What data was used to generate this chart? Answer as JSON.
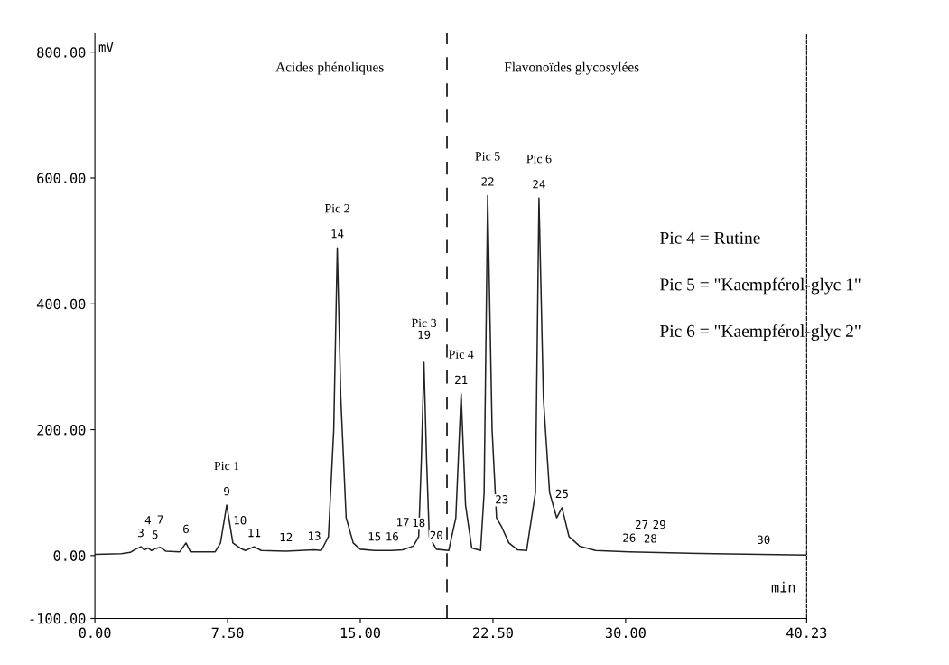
{
  "chart_data": {
    "type": "line",
    "xlabel": "min",
    "ylabel": "mV",
    "series": [
      {
        "color": "#222222",
        "x": [
          0,
          1.5,
          2.0,
          2.3,
          2.6,
          2.8,
          3.0,
          3.2,
          3.4,
          3.7,
          4.0,
          4.8,
          5.15,
          5.4,
          6.8,
          7.1,
          7.45,
          7.8,
          8.2,
          8.5,
          9.0,
          9.4,
          10.8,
          12.4,
          12.8,
          13.2,
          13.5,
          13.7,
          13.9,
          14.2,
          14.6,
          15.0,
          15.8,
          16.8,
          17.4,
          18.0,
          18.3,
          18.45,
          18.6,
          18.75,
          18.9,
          19.3,
          20.0,
          20.4,
          20.7,
          20.95,
          21.3,
          21.8,
          22.0,
          22.2,
          22.45,
          22.7,
          23.0,
          23.4,
          23.9,
          24.4,
          24.9,
          25.1,
          25.35,
          25.7,
          26.1,
          26.4,
          26.8,
          27.4,
          28.3,
          30.2,
          31.3,
          35,
          40.23
        ],
        "values": [
          2,
          3,
          5,
          10,
          14,
          9,
          12,
          8,
          11,
          13,
          7,
          6,
          20,
          6,
          6,
          20,
          80,
          20,
          12,
          8,
          14,
          8,
          7,
          9,
          8,
          30,
          200,
          489,
          250,
          60,
          20,
          10,
          8,
          8,
          9,
          15,
          30,
          150,
          307,
          150,
          30,
          10,
          8,
          60,
          257,
          80,
          12,
          8,
          100,
          572,
          200,
          60,
          45,
          20,
          9,
          8,
          100,
          568,
          250,
          100,
          60,
          76,
          30,
          15,
          8,
          6,
          5,
          3,
          1
        ]
      }
    ],
    "xlim": [
      0,
      40.23
    ],
    "ylim": [
      -100,
      830
    ],
    "xticks": [
      {
        "value": 0,
        "label": "0.00"
      },
      {
        "value": 7.5,
        "label": "7.50"
      },
      {
        "value": 15,
        "label": "15.00"
      },
      {
        "value": 22.5,
        "label": "22.50"
      },
      {
        "value": 30,
        "label": "30.00"
      },
      {
        "value": 40.23,
        "label": "40.23"
      }
    ],
    "yticks": [
      {
        "value": -100,
        "label": "-100.00"
      },
      {
        "value": 0,
        "label": "0.00"
      },
      {
        "value": 200,
        "label": "200.00"
      },
      {
        "value": 400,
        "label": "400.00"
      },
      {
        "value": 600,
        "label": "600.00"
      },
      {
        "value": 800,
        "label": "800.00"
      }
    ],
    "ref_lines": [
      {
        "axis": "x",
        "value": 19.9,
        "color": "#222222",
        "line_style": "dashed"
      }
    ],
    "grid": false,
    "legend": false,
    "annotations": [
      "Acides phénoliques",
      "Flavonoïdes glycosylées",
      "Pic 4 = Rutine",
      "Pic 5 = \"Kaempférol-glyc 1\"",
      "Pic 6 = \"Kaempférol-glyc 2\"",
      {
        "text": "3",
        "x": 2.6,
        "y": 14
      },
      {
        "text": "4",
        "x": 3.0,
        "y": 12
      },
      {
        "text": "5",
        "x": 3.4,
        "y": 11
      },
      {
        "text": "7",
        "x": 3.7,
        "y": 13
      },
      {
        "text": "6",
        "x": 5.15,
        "y": 20
      },
      {
        "text": "9",
        "x": 7.45,
        "y": 80
      },
      {
        "text": "Pic 1",
        "x": 7.45,
        "y": 80
      },
      {
        "text": "10",
        "x": 8.2,
        "y": 12
      },
      {
        "text": "11",
        "x": 9.0,
        "y": 14
      },
      {
        "text": "12",
        "x": 10.8,
        "y": 7
      },
      {
        "text": "13",
        "x": 12.4,
        "y": 9
      },
      {
        "text": "14",
        "x": 13.7,
        "y": 489
      },
      {
        "text": "Pic 2",
        "x": 13.7,
        "y": 489
      },
      {
        "text": "15",
        "x": 15.8,
        "y": 8
      },
      {
        "text": "16",
        "x": 16.8,
        "y": 8
      },
      {
        "text": "17",
        "x": 17.4,
        "y": 9
      },
      {
        "text": "18",
        "x": 18.3,
        "y": 30
      },
      {
        "text": "19",
        "x": 18.6,
        "y": 307
      },
      {
        "text": "Pic 3",
        "x": 18.6,
        "y": 307
      },
      {
        "text": "20",
        "x": 19.3,
        "y": 10
      },
      {
        "text": "21",
        "x": 20.7,
        "y": 257
      },
      {
        "text": "Pic 4",
        "x": 20.7,
        "y": 257
      },
      {
        "text": "22",
        "x": 22.2,
        "y": 572
      },
      {
        "text": "Pic 5",
        "x": 22.2,
        "y": 572
      },
      {
        "text": "23",
        "x": 23.0,
        "y": 45
      },
      {
        "text": "24",
        "x": 25.1,
        "y": 568
      },
      {
        "text": "Pic 6",
        "x": 25.1,
        "y": 568
      },
      {
        "text": "25",
        "x": 26.4,
        "y": 76
      },
      {
        "text": "26",
        "x": 30.2,
        "y": 6
      },
      {
        "text": "27",
        "x": 30.9,
        "y": 5
      },
      {
        "text": "28",
        "x": 31.4,
        "y": 5
      },
      {
        "text": "29",
        "x": 31.9,
        "y": 5
      },
      {
        "text": "30",
        "x": 37.8,
        "y": 3
      }
    ]
  }
}
